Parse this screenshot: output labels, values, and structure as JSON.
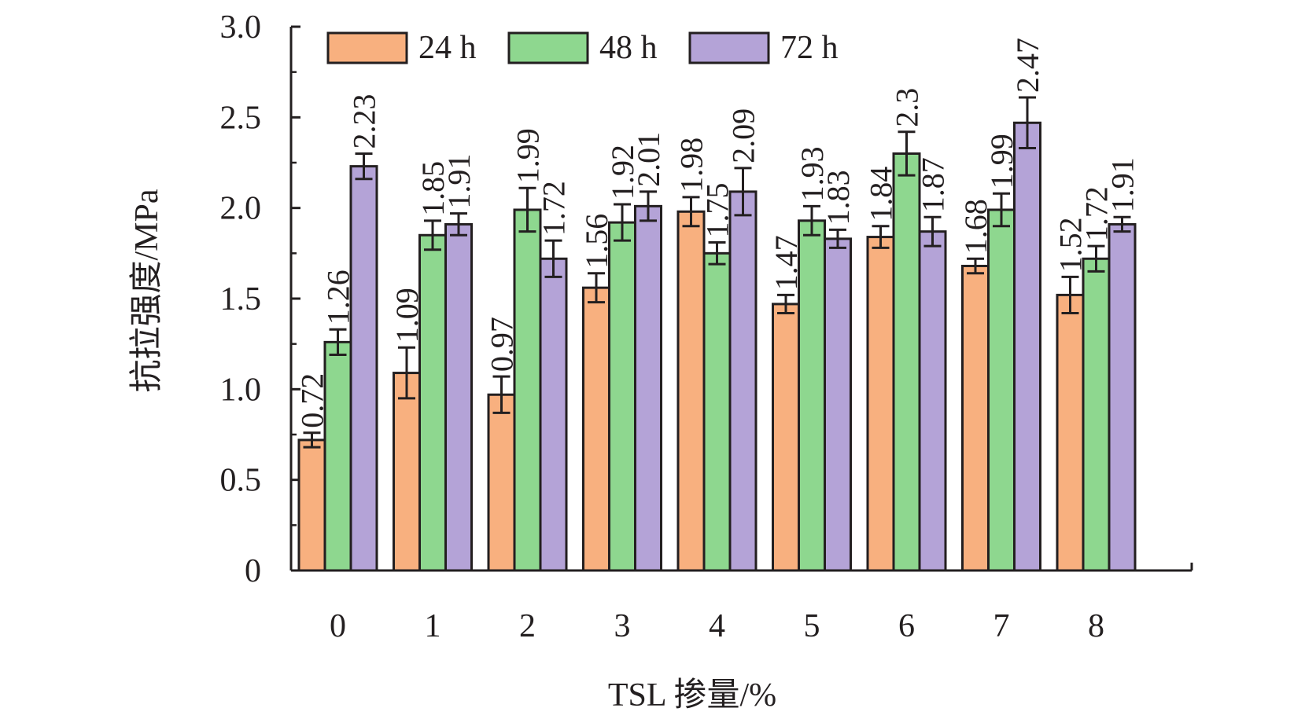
{
  "chart_data": {
    "type": "bar",
    "title": "",
    "xlabel": "TSL 掺量/%",
    "ylabel": "抗拉强度/MPa",
    "ylim": [
      0,
      3.0
    ],
    "yticks": [
      0,
      0.5,
      1.0,
      1.5,
      2.0,
      2.5,
      3.0
    ],
    "ytick_labels": [
      "0",
      "0.5",
      "1.0",
      "1.5",
      "2.0",
      "2.5",
      "3.0"
    ],
    "categories": [
      "0",
      "1",
      "2",
      "3",
      "4",
      "5",
      "6",
      "7",
      "8"
    ],
    "legend_position": "top",
    "grid": false,
    "series": [
      {
        "name": "24 h",
        "color": "#f8b07f",
        "values": [
          0.72,
          1.09,
          0.97,
          1.56,
          1.98,
          1.47,
          1.84,
          1.68,
          1.52
        ],
        "labels": [
          "0.72",
          "1.09",
          "0.97",
          "1.56",
          "1.98",
          "1.47",
          "1.84",
          "1.68",
          "1.52"
        ],
        "errors": [
          0.04,
          0.14,
          0.1,
          0.08,
          0.08,
          0.05,
          0.06,
          0.04,
          0.1
        ]
      },
      {
        "name": "48 h",
        "color": "#8ed78f",
        "values": [
          1.26,
          1.85,
          1.99,
          1.92,
          1.75,
          1.93,
          2.3,
          1.99,
          1.72
        ],
        "labels": [
          "1.26",
          "1.85",
          "1.99",
          "1.92",
          "1.75",
          "1.93",
          "2.3",
          "1.99",
          "1.72"
        ],
        "errors": [
          0.07,
          0.08,
          0.12,
          0.1,
          0.06,
          0.08,
          0.12,
          0.09,
          0.07
        ]
      },
      {
        "name": "72 h",
        "color": "#b4a3d7",
        "values": [
          2.23,
          1.91,
          1.72,
          2.01,
          2.09,
          1.83,
          1.87,
          2.47,
          1.91
        ],
        "labels": [
          "2.23",
          "1.91",
          "1.72",
          "2.01",
          "2.09",
          "1.83",
          "1.87",
          "2.47",
          "1.91"
        ],
        "errors": [
          0.07,
          0.06,
          0.1,
          0.08,
          0.13,
          0.05,
          0.08,
          0.14,
          0.04
        ]
      }
    ]
  }
}
